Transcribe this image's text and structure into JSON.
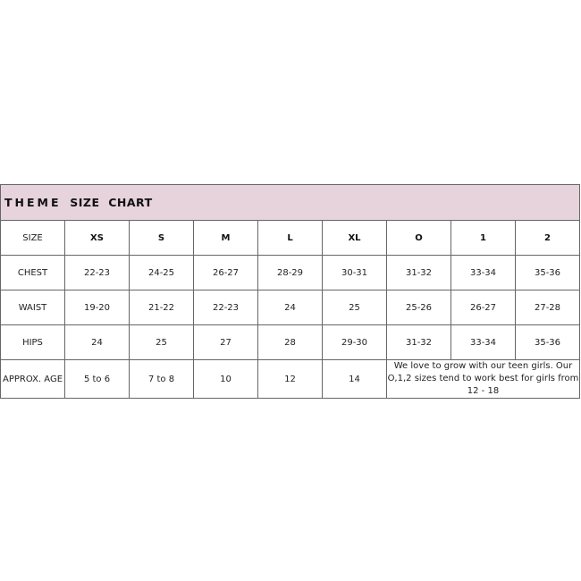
{
  "title": {
    "word1": "THEME",
    "word2": "SIZE  CHART"
  },
  "header_row": {
    "label": "SIZE",
    "sizes": [
      "XS",
      "S",
      "M",
      "L",
      "XL",
      "O",
      "1",
      "2"
    ]
  },
  "rows": [
    {
      "label": "CHEST",
      "values": [
        "22-23",
        "24-25",
        "26-27",
        "28-29",
        "30-31",
        "31-32",
        "33-34",
        "35-36"
      ]
    },
    {
      "label": "WAIST",
      "values": [
        "19-20",
        "21-22",
        "22-23",
        "24",
        "25",
        "25-26",
        "26-27",
        "27-28"
      ]
    },
    {
      "label": "HIPS",
      "values": [
        "24",
        "25",
        "27",
        "28",
        "29-30",
        "31-32",
        "33-34",
        "35-36"
      ]
    }
  ],
  "age_row": {
    "label": "APPROX. AGE",
    "values": [
      "5 to 6",
      "7 to 8",
      "10",
      "12",
      "14"
    ],
    "note": "We love to grow with our teen girls. Our O,1,2 sizes tend to work best for girls from 12 - 18"
  },
  "colors": {
    "header_bg": "#e6d3dc",
    "border": "#666666"
  }
}
